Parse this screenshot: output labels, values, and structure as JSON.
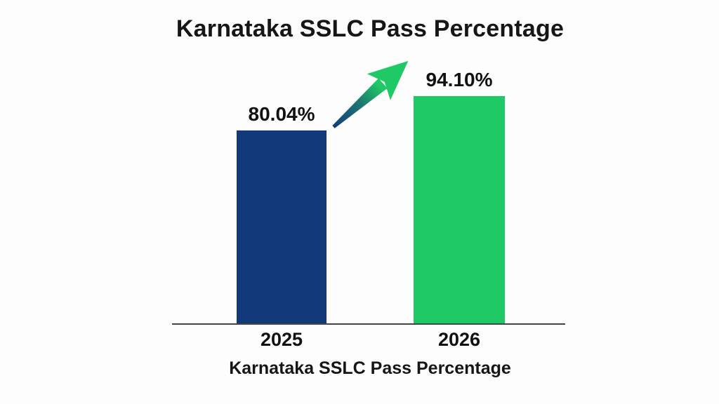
{
  "title": "Karnataka SSLC Pass Percentage",
  "caption": "Karnataka SSLC Pass Percentage",
  "colors": {
    "background": "#FDFDFD",
    "text": "#161616",
    "axis": "#454545",
    "bar_2025": "#123A7B",
    "bar_2026": "#1FC966",
    "arrow_start": "#123C7C",
    "arrow_mid": "#1C7B72",
    "arrow_end": "#1FC966"
  },
  "chart_data": {
    "type": "bar",
    "title": "Karnataka SSLC Pass Percentage",
    "categories": [
      "2025",
      "2026"
    ],
    "values": [
      80.04,
      94.1
    ],
    "value_labels": [
      "80.04%",
      "94.10%"
    ],
    "bar_colors": [
      "#123A7B",
      "#1FC966"
    ],
    "xlabel": "Karnataka SSLC Pass Percentage",
    "ylabel": "",
    "ylim": [
      0,
      110
    ],
    "grid": false,
    "legend": false,
    "annotations": [
      "gradient upward trend arrow from 2025 bar toward 2026 bar"
    ]
  }
}
